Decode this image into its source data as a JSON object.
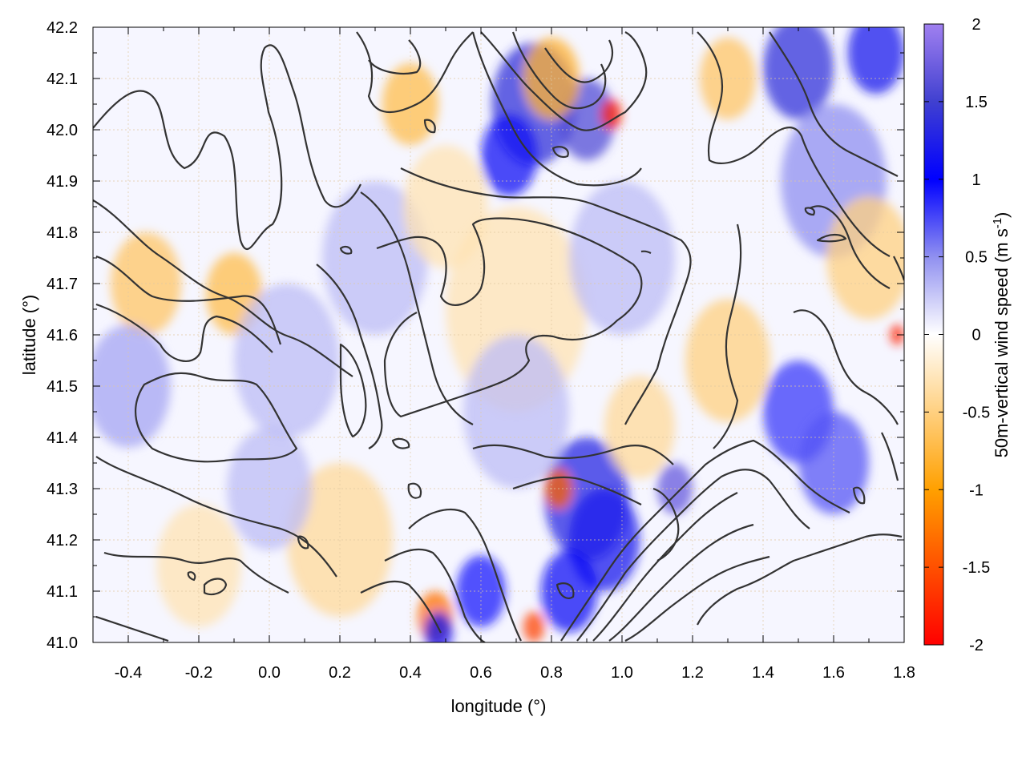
{
  "chart_data": {
    "type": "heatmap",
    "title": "",
    "xlabel": "longitude (°)",
    "ylabel": "latitude (°)",
    "xlim": [
      -0.5,
      1.8
    ],
    "ylim": [
      41.0,
      42.2
    ],
    "x_ticks": [
      "-0.4",
      "-0.2",
      "0.0",
      "0.2",
      "0.4",
      "0.6",
      "0.8",
      "1.0",
      "1.2",
      "1.4",
      "1.6",
      "1.8"
    ],
    "x_tick_values": [
      -0.4,
      -0.2,
      0.0,
      0.2,
      0.4,
      0.6,
      0.8,
      1.0,
      1.2,
      1.4,
      1.6,
      1.8
    ],
    "y_ticks": [
      "41.0",
      "41.1",
      "41.2",
      "41.3",
      "41.4",
      "41.5",
      "41.6",
      "41.7",
      "41.8",
      "41.9",
      "42.0",
      "42.1",
      "42.2"
    ],
    "y_tick_values": [
      41.0,
      41.1,
      41.2,
      41.3,
      41.4,
      41.5,
      41.6,
      41.7,
      41.8,
      41.9,
      42.0,
      42.1,
      42.2
    ],
    "grid": true,
    "colorbar": {
      "label": "50m-vertical wind speed (m s",
      "label_exponent": "-1",
      "label_close": ")",
      "range": [
        -2,
        2
      ],
      "ticks": [
        "2",
        "1.5",
        "1",
        "0.5",
        "0",
        "-0.5",
        "-1",
        "-1.5",
        "-2"
      ],
      "tick_values": [
        2,
        1.5,
        1,
        0.5,
        0,
        -0.5,
        -1,
        -1.5,
        -2
      ],
      "colors": [
        {
          "v": -2,
          "c": "#ff0000"
        },
        {
          "v": -1.5,
          "c": "#ff5000"
        },
        {
          "v": -1,
          "c": "#ffa000"
        },
        {
          "v": -0.5,
          "c": "#ffd080"
        },
        {
          "v": 0,
          "c": "#ffffff"
        },
        {
          "v": 0.5,
          "c": "#9090f0"
        },
        {
          "v": 1,
          "c": "#0000ff"
        },
        {
          "v": 1.5,
          "c": "#4040d0"
        },
        {
          "v": 2,
          "c": "#a080f0"
        }
      ]
    },
    "hotspots": [
      {
        "lon": 0.75,
        "lat": 42.05,
        "v": 1.4,
        "r": 0.12
      },
      {
        "lon": 0.9,
        "lat": 42.02,
        "v": 1.6,
        "r": 0.08
      },
      {
        "lon": 0.97,
        "lat": 42.03,
        "v": -1.8,
        "r": 0.03
      },
      {
        "lon": 0.68,
        "lat": 41.95,
        "v": 1.1,
        "r": 0.08
      },
      {
        "lon": 0.8,
        "lat": 42.1,
        "v": -0.8,
        "r": 0.08
      },
      {
        "lon": 1.5,
        "lat": 42.12,
        "v": 1.4,
        "r": 0.1
      },
      {
        "lon": 1.72,
        "lat": 42.15,
        "v": 1.2,
        "r": 0.08
      },
      {
        "lon": 0.4,
        "lat": 42.05,
        "v": -0.7,
        "r": 0.08
      },
      {
        "lon": 1.3,
        "lat": 42.1,
        "v": -0.6,
        "r": 0.08
      },
      {
        "lon": 0.9,
        "lat": 41.28,
        "v": 1.3,
        "r": 0.12
      },
      {
        "lon": 1.15,
        "lat": 41.3,
        "v": 1.7,
        "r": 0.05
      },
      {
        "lon": 0.82,
        "lat": 41.3,
        "v": -1.4,
        "r": 0.04
      },
      {
        "lon": 0.95,
        "lat": 41.2,
        "v": 1.2,
        "r": 0.1
      },
      {
        "lon": 0.85,
        "lat": 41.1,
        "v": 1.1,
        "r": 0.08
      },
      {
        "lon": 0.47,
        "lat": 41.05,
        "v": -1.3,
        "r": 0.05
      },
      {
        "lon": 0.48,
        "lat": 41.02,
        "v": 1.1,
        "r": 0.04
      },
      {
        "lon": 0.75,
        "lat": 41.03,
        "v": -1.6,
        "r": 0.03
      },
      {
        "lon": 0.6,
        "lat": 41.1,
        "v": 0.9,
        "r": 0.07
      },
      {
        "lon": 1.5,
        "lat": 41.45,
        "v": 0.8,
        "r": 0.1
      },
      {
        "lon": 1.6,
        "lat": 41.35,
        "v": 0.7,
        "r": 0.1
      },
      {
        "lon": 1.78,
        "lat": 41.6,
        "v": -1.8,
        "r": 0.02
      },
      {
        "lon": 1.3,
        "lat": 41.55,
        "v": -0.5,
        "r": 0.12
      },
      {
        "lon": -0.35,
        "lat": 41.7,
        "v": -0.6,
        "r": 0.1
      },
      {
        "lon": -0.1,
        "lat": 41.68,
        "v": -0.7,
        "r": 0.08
      },
      {
        "lon": -0.4,
        "lat": 41.5,
        "v": 0.4,
        "r": 0.12
      },
      {
        "lon": 0.05,
        "lat": 41.55,
        "v": 0.3,
        "r": 0.15
      },
      {
        "lon": 0.2,
        "lat": 41.2,
        "v": -0.4,
        "r": 0.15
      },
      {
        "lon": 0.0,
        "lat": 41.3,
        "v": 0.3,
        "r": 0.12
      },
      {
        "lon": -0.2,
        "lat": 41.15,
        "v": -0.3,
        "r": 0.12
      },
      {
        "lon": 1.6,
        "lat": 41.9,
        "v": 0.5,
        "r": 0.15
      },
      {
        "lon": 1.7,
        "lat": 41.75,
        "v": -0.5,
        "r": 0.12
      },
      {
        "lon": 0.3,
        "lat": 41.75,
        "v": 0.3,
        "r": 0.15
      },
      {
        "lon": 0.7,
        "lat": 41.65,
        "v": -0.3,
        "r": 0.2
      },
      {
        "lon": 1.0,
        "lat": 41.75,
        "v": 0.3,
        "r": 0.15
      },
      {
        "lon": 0.5,
        "lat": 41.85,
        "v": -0.3,
        "r": 0.12
      },
      {
        "lon": 0.7,
        "lat": 41.45,
        "v": 0.3,
        "r": 0.15
      },
      {
        "lon": 1.05,
        "lat": 41.42,
        "v": -0.4,
        "r": 0.1
      }
    ]
  }
}
